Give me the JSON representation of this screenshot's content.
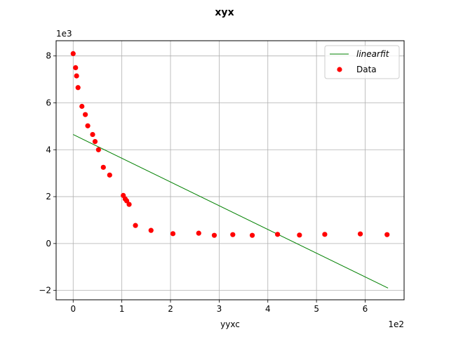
{
  "chart_data": {
    "type": "scatter",
    "title": "xyx",
    "xlabel": "yyxc",
    "ylabel": "",
    "x_offset_label": "1e2",
    "y_offset_label": "1e3",
    "xlim": [
      -35,
      680
    ],
    "ylim": [
      -2400,
      8650
    ],
    "x_ticks": [
      0,
      100,
      200,
      300,
      400,
      500,
      600
    ],
    "x_tick_labels": [
      "0",
      "1",
      "2",
      "3",
      "4",
      "5",
      "6"
    ],
    "y_ticks": [
      -2000,
      0,
      2000,
      4000,
      6000,
      8000
    ],
    "y_tick_labels": [
      "−2",
      "0",
      "2",
      "4",
      "6",
      "8"
    ],
    "grid": true,
    "legend_position": "upper-right",
    "series": [
      {
        "name": "linearfit",
        "kind": "line",
        "color": "#008000",
        "x": [
          0,
          647
        ],
        "y": [
          4650,
          -1900
        ]
      },
      {
        "name": "Data",
        "kind": "scatter",
        "color": "#ff0000",
        "x": [
          0,
          5,
          7,
          10,
          18,
          25,
          30,
          40,
          45,
          52,
          62,
          75,
          103,
          107,
          110,
          115,
          128,
          160,
          205,
          258,
          290,
          328,
          368,
          420,
          465,
          517,
          590,
          645
        ],
        "y": [
          8100,
          7500,
          7150,
          6650,
          5850,
          5500,
          5020,
          4650,
          4350,
          4000,
          3250,
          2920,
          2050,
          1900,
          1820,
          1670,
          770,
          560,
          420,
          440,
          350,
          380,
          350,
          390,
          360,
          390,
          410,
          380
        ]
      }
    ]
  }
}
